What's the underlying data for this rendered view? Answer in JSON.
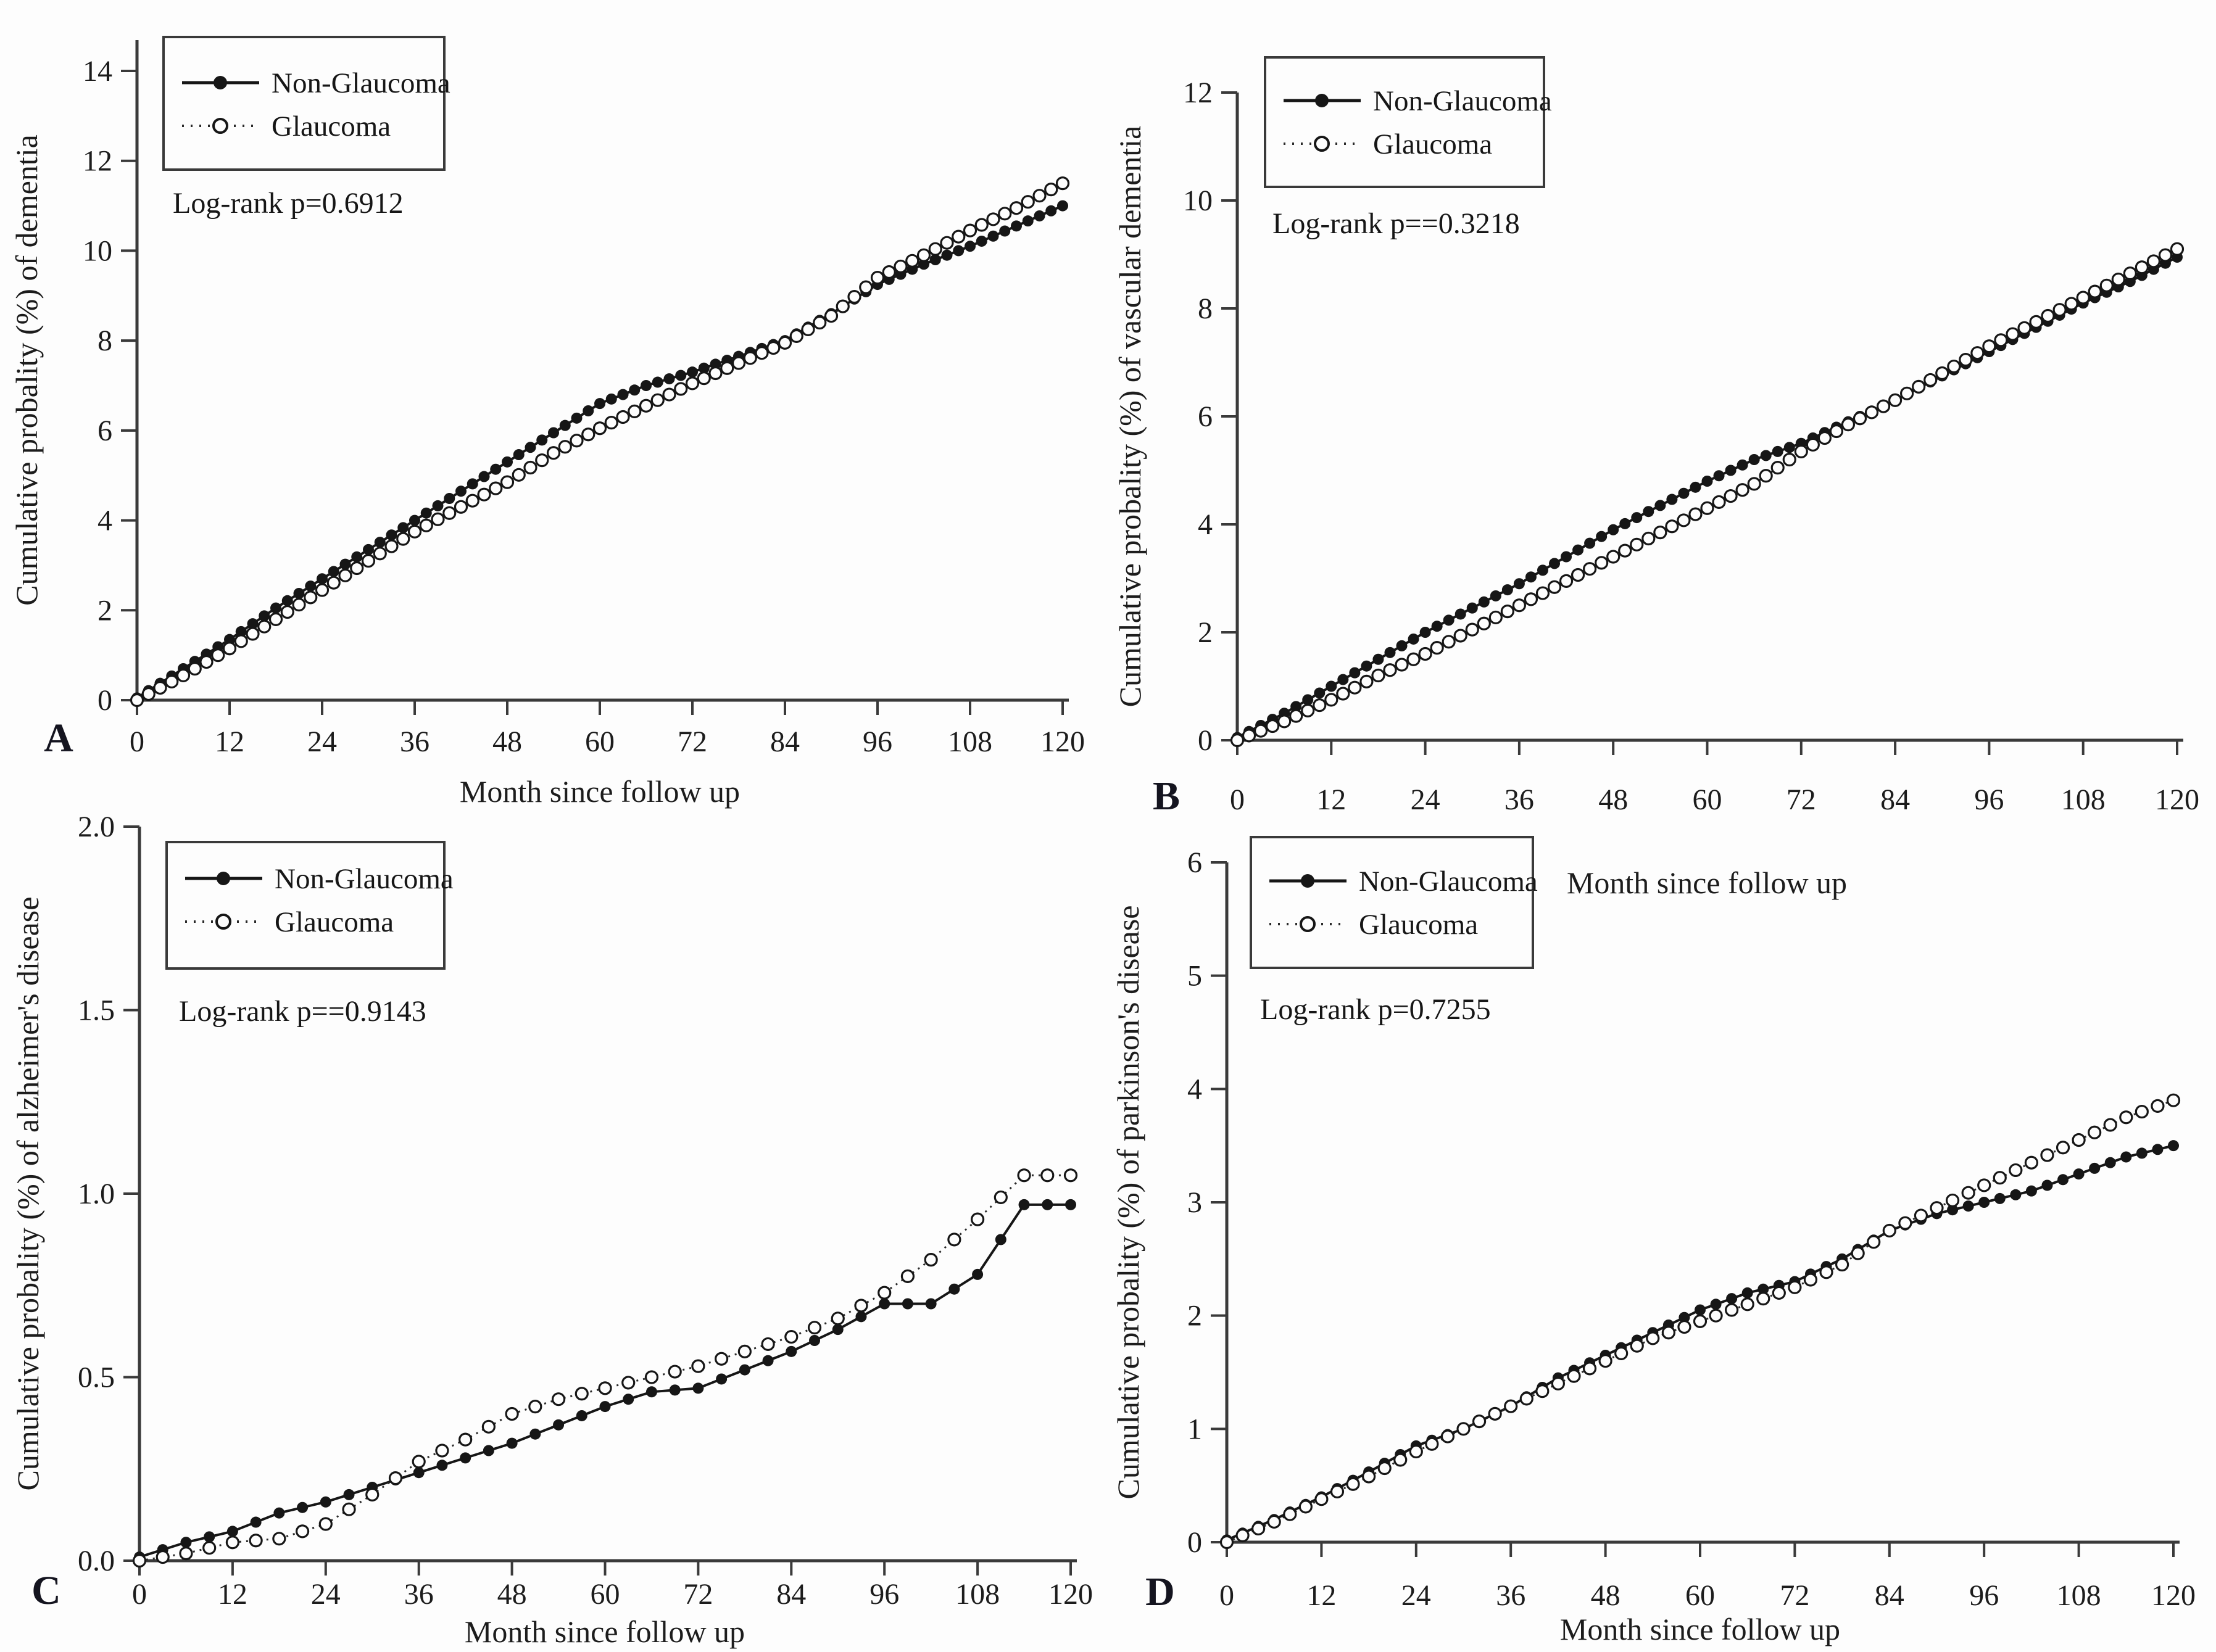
{
  "chart_data": [
    {
      "panel_label": "A",
      "type": "line",
      "xlabel": "Month since follow up",
      "ylabel": "Cumulative probality (%) of dementia",
      "stats_label": "Log-rank p=0.6912",
      "legend_position": "top-left",
      "grid": false,
      "xlim": [
        0,
        120
      ],
      "ylim": [
        0,
        14.7
      ],
      "xticks": [
        0,
        12,
        24,
        36,
        48,
        60,
        72,
        84,
        96,
        108,
        120
      ],
      "xtick_labels": [
        "0",
        "12",
        "24",
        "36",
        "48",
        "60",
        "72",
        "84",
        "96",
        "108",
        "120"
      ],
      "yticks": [
        0,
        2,
        4,
        6,
        8,
        10,
        12,
        14
      ],
      "ytick_labels": [
        "0",
        "2",
        "4",
        "6",
        "8",
        "10",
        "12",
        "14"
      ],
      "x": [
        0,
        6,
        12,
        18,
        24,
        30,
        36,
        42,
        48,
        54,
        60,
        66,
        72,
        78,
        84,
        90,
        96,
        102,
        108,
        114,
        120
      ],
      "series": [
        {
          "name": "Non-Glaucoma",
          "marker": "filled-circle",
          "line_style": "solid",
          "values": [
            0.05,
            0.7,
            1.35,
            2.05,
            2.7,
            3.35,
            4.0,
            4.65,
            5.3,
            5.95,
            6.6,
            7.0,
            7.3,
            7.65,
            8.0,
            8.6,
            9.25,
            9.7,
            10.1,
            10.55,
            11.0
          ]
        },
        {
          "name": "Glaucoma",
          "marker": "open-circle",
          "line_style": "dotted",
          "values": [
            0.0,
            0.55,
            1.15,
            1.8,
            2.45,
            3.1,
            3.75,
            4.3,
            4.85,
            5.5,
            6.05,
            6.55,
            7.05,
            7.5,
            7.95,
            8.55,
            9.4,
            9.9,
            10.45,
            10.95,
            11.5
          ]
        }
      ]
    },
    {
      "panel_label": "B",
      "type": "line",
      "xlabel": "Month since follow up",
      "ylabel": "Cumulative probality (%) of  vascular dementia",
      "stats_label": "Log-rank p==0.3218",
      "legend_position": "top-left",
      "grid": false,
      "xlim": [
        0,
        120
      ],
      "ylim": [
        0,
        12
      ],
      "xticks": [
        0,
        12,
        24,
        36,
        48,
        60,
        72,
        84,
        96,
        108,
        120
      ],
      "xtick_labels": [
        "0",
        "12",
        "24",
        "36",
        "48",
        "60",
        "72",
        "84",
        "96",
        "108",
        "120"
      ],
      "yticks": [
        0,
        2,
        4,
        6,
        8,
        10,
        12
      ],
      "ytick_labels": [
        "0",
        "2",
        "4",
        "6",
        "8",
        "10",
        "12"
      ],
      "x": [
        0,
        6,
        12,
        18,
        24,
        30,
        36,
        42,
        48,
        54,
        60,
        66,
        72,
        78,
        84,
        90,
        96,
        102,
        108,
        114,
        120
      ],
      "series": [
        {
          "name": "Non-Glaucoma",
          "marker": "filled-circle",
          "line_style": "solid",
          "values": [
            0.05,
            0.5,
            1.0,
            1.5,
            2.0,
            2.45,
            2.9,
            3.4,
            3.9,
            4.35,
            4.8,
            5.2,
            5.5,
            5.9,
            6.3,
            6.75,
            7.2,
            7.65,
            8.1,
            8.5,
            8.95
          ]
        },
        {
          "name": "Glaucoma",
          "marker": "open-circle",
          "line_style": "dotted",
          "values": [
            0.0,
            0.35,
            0.75,
            1.2,
            1.6,
            2.05,
            2.5,
            2.95,
            3.4,
            3.85,
            4.3,
            4.75,
            5.35,
            5.85,
            6.3,
            6.8,
            7.3,
            7.75,
            8.2,
            8.65,
            9.1
          ]
        }
      ]
    },
    {
      "panel_label": "C",
      "type": "line",
      "xlabel": "Month since follow up",
      "ylabel": "Cumulative probality (%) of alzheimer's disease",
      "stats_label": "Log-rank p==0.9143",
      "legend_position": "top-left",
      "grid": false,
      "xlim": [
        0,
        120
      ],
      "ylim": [
        0,
        2.0
      ],
      "xticks": [
        0,
        12,
        24,
        36,
        48,
        60,
        72,
        84,
        96,
        108,
        120
      ],
      "xtick_labels": [
        "0",
        "12",
        "24",
        "36",
        "48",
        "60",
        "72",
        "84",
        "96",
        "108",
        "120"
      ],
      "yticks": [
        0,
        0.5,
        1.0,
        1.5,
        2.0
      ],
      "ytick_labels": [
        "0.0",
        "0.5",
        "1.0",
        "1.5",
        "2.0"
      ],
      "x": [
        0,
        6,
        12,
        18,
        24,
        30,
        36,
        42,
        48,
        54,
        60,
        66,
        72,
        78,
        84,
        90,
        96,
        102,
        108,
        114,
        120
      ],
      "series": [
        {
          "name": "Non-Glaucoma",
          "marker": "filled-circle",
          "line_style": "solid",
          "values": [
            0.01,
            0.05,
            0.08,
            0.13,
            0.16,
            0.2,
            0.24,
            0.28,
            0.32,
            0.37,
            0.42,
            0.46,
            0.47,
            0.52,
            0.57,
            0.63,
            0.7,
            0.7,
            0.78,
            0.97,
            0.97
          ]
        },
        {
          "name": "Glaucoma",
          "marker": "open-circle",
          "line_style": "dotted",
          "values": [
            0.0,
            0.02,
            0.05,
            0.06,
            0.1,
            0.18,
            0.27,
            0.33,
            0.4,
            0.44,
            0.47,
            0.5,
            0.53,
            0.57,
            0.61,
            0.66,
            0.73,
            0.82,
            0.93,
            1.05,
            1.05
          ]
        }
      ]
    },
    {
      "panel_label": "D",
      "type": "line",
      "xlabel": "Month since follow up",
      "ylabel": "Cumulative probality (%) of parkinson's disease",
      "stats_label": "Log-rank p=0.7255",
      "legend_position": "top-left",
      "grid": false,
      "xlim": [
        0,
        120
      ],
      "ylim": [
        0,
        6
      ],
      "xticks": [
        0,
        12,
        24,
        36,
        48,
        60,
        72,
        84,
        96,
        108,
        120
      ],
      "xtick_labels": [
        "0",
        "12",
        "24",
        "36",
        "48",
        "60",
        "72",
        "84",
        "96",
        "108",
        "120"
      ],
      "yticks": [
        0,
        1,
        2,
        3,
        4,
        5,
        6
      ],
      "ytick_labels": [
        "0",
        "1",
        "2",
        "3",
        "4",
        "5",
        "6"
      ],
      "x": [
        0,
        6,
        12,
        18,
        24,
        30,
        36,
        42,
        48,
        54,
        60,
        66,
        72,
        78,
        84,
        90,
        96,
        102,
        108,
        114,
        120
      ],
      "series": [
        {
          "name": "Non-Glaucoma",
          "marker": "filled-circle",
          "line_style": "solid",
          "values": [
            0.02,
            0.2,
            0.4,
            0.62,
            0.85,
            1.0,
            1.2,
            1.45,
            1.65,
            1.85,
            2.05,
            2.2,
            2.3,
            2.5,
            2.75,
            2.9,
            3.0,
            3.1,
            3.25,
            3.4,
            3.5
          ]
        },
        {
          "name": "Glaucoma",
          "marker": "open-circle",
          "line_style": "dotted",
          "values": [
            0.0,
            0.18,
            0.38,
            0.58,
            0.8,
            1.0,
            1.2,
            1.4,
            1.6,
            1.8,
            1.95,
            2.1,
            2.25,
            2.45,
            2.75,
            2.95,
            3.15,
            3.35,
            3.55,
            3.75,
            3.9
          ]
        }
      ]
    }
  ],
  "colors": {
    "curve_black": "#161616",
    "axis": "#3a3a3a",
    "background": "#fdfdfd"
  }
}
